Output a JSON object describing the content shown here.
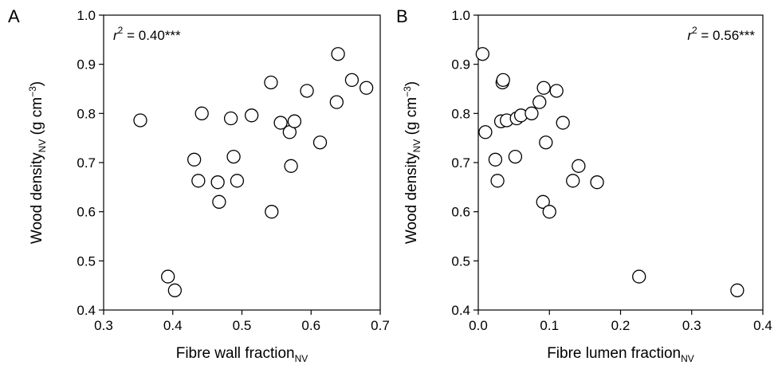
{
  "chart_data": [
    {
      "type": "scatter",
      "panel_label": "A",
      "xlabel": "Fibre wall fraction",
      "xlabel_sub": "NV",
      "ylabel": "Wood density",
      "ylabel_sub": "NV",
      "ylabel_units_prefix": " (g cm",
      "ylabel_units_sup": "−3",
      "ylabel_units_suffix": ")",
      "annotation_r": "r",
      "annotation_sup": "2",
      "annotation_value": " = 0.40***",
      "annotation_position": "top-left",
      "xlim": [
        0.3,
        0.7
      ],
      "ylim": [
        0.4,
        1.0
      ],
      "x_ticks": [
        0.3,
        0.4,
        0.5,
        0.6,
        0.7
      ],
      "x_tick_labels": [
        "0.3",
        "0.4",
        "0.5",
        "0.6",
        "0.7"
      ],
      "y_ticks": [
        0.4,
        0.5,
        0.6,
        0.7,
        0.8,
        0.9,
        1.0
      ],
      "y_tick_labels": [
        "0.4",
        "0.5",
        "0.6",
        "0.7",
        "0.8",
        "0.9",
        "1.0"
      ],
      "grid": false,
      "points": [
        {
          "x": 0.353,
          "y": 0.786
        },
        {
          "x": 0.393,
          "y": 0.468
        },
        {
          "x": 0.403,
          "y": 0.44
        },
        {
          "x": 0.431,
          "y": 0.706
        },
        {
          "x": 0.437,
          "y": 0.663
        },
        {
          "x": 0.442,
          "y": 0.8
        },
        {
          "x": 0.465,
          "y": 0.66
        },
        {
          "x": 0.467,
          "y": 0.62
        },
        {
          "x": 0.484,
          "y": 0.79
        },
        {
          "x": 0.488,
          "y": 0.712
        },
        {
          "x": 0.493,
          "y": 0.663
        },
        {
          "x": 0.514,
          "y": 0.796
        },
        {
          "x": 0.542,
          "y": 0.863
        },
        {
          "x": 0.543,
          "y": 0.6
        },
        {
          "x": 0.556,
          "y": 0.781
        },
        {
          "x": 0.569,
          "y": 0.762
        },
        {
          "x": 0.571,
          "y": 0.693
        },
        {
          "x": 0.576,
          "y": 0.784
        },
        {
          "x": 0.594,
          "y": 0.846
        },
        {
          "x": 0.613,
          "y": 0.741
        },
        {
          "x": 0.637,
          "y": 0.823
        },
        {
          "x": 0.639,
          "y": 0.921
        },
        {
          "x": 0.659,
          "y": 0.868
        },
        {
          "x": 0.68,
          "y": 0.852
        }
      ]
    },
    {
      "type": "scatter",
      "panel_label": "B",
      "xlabel": "Fibre lumen fraction",
      "xlabel_sub": "NV",
      "ylabel": "Wood density",
      "ylabel_sub": "NV",
      "ylabel_units_prefix": " (g cm",
      "ylabel_units_sup": "−3",
      "ylabel_units_suffix": ")",
      "annotation_r": "r",
      "annotation_sup": "2",
      "annotation_value": " = 0.56***",
      "annotation_position": "top-right",
      "xlim": [
        0,
        0.4
      ],
      "ylim": [
        0.4,
        1.0
      ],
      "x_ticks": [
        0,
        0.1,
        0.2,
        0.3,
        0.4
      ],
      "x_tick_labels": [
        "0.0",
        "0.1",
        "0.2",
        "0.3",
        "0.4"
      ],
      "y_ticks": [
        0.4,
        0.5,
        0.6,
        0.7,
        0.8,
        0.9,
        1.0
      ],
      "y_tick_labels": [
        "0.4",
        "0.5",
        "0.6",
        "0.7",
        "0.8",
        "0.9",
        "1.0"
      ],
      "grid": false,
      "points": [
        {
          "x": 0.006,
          "y": 0.921
        },
        {
          "x": 0.01,
          "y": 0.762
        },
        {
          "x": 0.024,
          "y": 0.706
        },
        {
          "x": 0.027,
          "y": 0.663
        },
        {
          "x": 0.032,
          "y": 0.784
        },
        {
          "x": 0.034,
          "y": 0.863
        },
        {
          "x": 0.035,
          "y": 0.868
        },
        {
          "x": 0.04,
          "y": 0.786
        },
        {
          "x": 0.052,
          "y": 0.712
        },
        {
          "x": 0.054,
          "y": 0.79
        },
        {
          "x": 0.06,
          "y": 0.796
        },
        {
          "x": 0.075,
          "y": 0.8
        },
        {
          "x": 0.086,
          "y": 0.823
        },
        {
          "x": 0.091,
          "y": 0.62
        },
        {
          "x": 0.092,
          "y": 0.852
        },
        {
          "x": 0.095,
          "y": 0.741
        },
        {
          "x": 0.1,
          "y": 0.6
        },
        {
          "x": 0.11,
          "y": 0.846
        },
        {
          "x": 0.119,
          "y": 0.781
        },
        {
          "x": 0.133,
          "y": 0.663
        },
        {
          "x": 0.141,
          "y": 0.693
        },
        {
          "x": 0.167,
          "y": 0.66
        },
        {
          "x": 0.226,
          "y": 0.468
        },
        {
          "x": 0.364,
          "y": 0.44
        }
      ]
    }
  ]
}
